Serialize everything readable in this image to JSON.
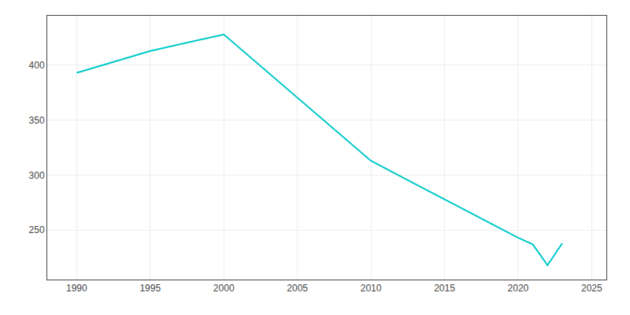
{
  "chart_data": {
    "type": "line",
    "x": [
      1990,
      1995,
      2000,
      2010,
      2020,
      2021,
      2022,
      2023
    ],
    "values": [
      393,
      413,
      428,
      313,
      243,
      237,
      218,
      238
    ],
    "color": "#00c8c8",
    "xlim": [
      1988,
      2026
    ],
    "ylim": [
      205,
      445
    ],
    "xticks": [
      1990,
      1995,
      2000,
      2005,
      2010,
      2015,
      2020,
      2025
    ],
    "yticks": [
      250,
      300,
      350,
      400
    ],
    "grid": true
  }
}
